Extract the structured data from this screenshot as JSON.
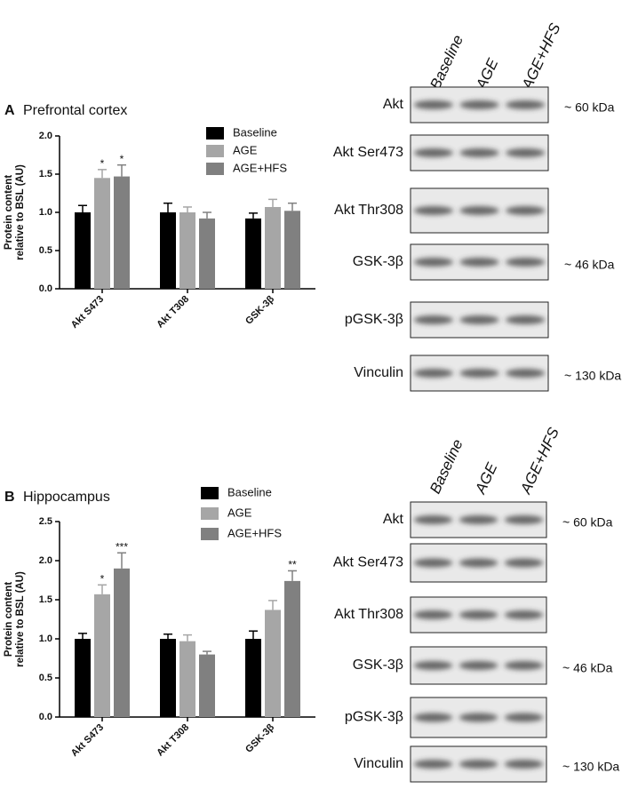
{
  "chart_data": [
    {
      "type": "bar",
      "panel_label": "A",
      "title": "Prefrontal cortex",
      "y_label": [
        "Protein content",
        "relative to BSL (AU)"
      ],
      "categories": [
        "Akt S473",
        "Akt T308",
        "GSK-3β"
      ],
      "ylim": [
        0,
        2
      ],
      "yticks": [
        {
          "value": 0,
          "label": "0.0"
        },
        {
          "value": 0.5,
          "label": "0.5"
        },
        {
          "value": 1,
          "label": "1.0"
        },
        {
          "value": 1.5,
          "label": "1.5"
        },
        {
          "value": 2,
          "label": "2.0"
        }
      ],
      "series": [
        {
          "name": "Baseline",
          "color": "#000000",
          "values": [
            1.0,
            1.0,
            0.92
          ],
          "errors": [
            0.09,
            0.12,
            0.07
          ],
          "significance": [
            null,
            null,
            null
          ]
        },
        {
          "name": "AGE",
          "color": "#a6a6a6",
          "values": [
            1.45,
            1.0,
            1.07
          ],
          "errors": [
            0.11,
            0.07,
            0.1
          ],
          "significance": [
            "*",
            null,
            null
          ]
        },
        {
          "name": "AGE+HFS",
          "color": "#808080",
          "values": [
            1.47,
            0.92,
            1.02
          ],
          "errors": [
            0.15,
            0.08,
            0.1
          ],
          "significance": [
            "*",
            null,
            null
          ]
        }
      ]
    },
    {
      "type": "bar",
      "panel_label": "B",
      "title": "Hippocampus",
      "y_label": [
        "Protein content",
        "relative to BSL (AU)"
      ],
      "categories": [
        "Akt S473",
        "Akt T308",
        "GSK-3β"
      ],
      "ylim": [
        0,
        2.5
      ],
      "yticks": [
        {
          "value": 0,
          "label": "0.0"
        },
        {
          "value": 0.5,
          "label": "0.5"
        },
        {
          "value": 1,
          "label": "1.0"
        },
        {
          "value": 1.5,
          "label": "1.5"
        },
        {
          "value": 2,
          "label": "2.0"
        },
        {
          "value": 2.5,
          "label": "2.5"
        }
      ],
      "series": [
        {
          "name": "Baseline",
          "color": "#000000",
          "values": [
            1.0,
            1.0,
            1.0
          ],
          "errors": [
            0.07,
            0.06,
            0.1
          ],
          "significance": [
            null,
            null,
            null
          ]
        },
        {
          "name": "AGE",
          "color": "#a6a6a6",
          "values": [
            1.57,
            0.97,
            1.37
          ],
          "errors": [
            0.12,
            0.08,
            0.12
          ],
          "significance": [
            "*",
            null,
            null
          ]
        },
        {
          "name": "AGE+HFS",
          "color": "#808080",
          "values": [
            1.9,
            0.8,
            1.74
          ],
          "errors": [
            0.2,
            0.04,
            0.13
          ],
          "significance": [
            "***",
            null,
            "**"
          ]
        }
      ]
    }
  ],
  "blots": [
    {
      "lanes": [
        "Baseline",
        "AGE",
        "AGE+HFS"
      ],
      "rows": [
        {
          "label": "Akt",
          "size": "~ 60 kDa"
        },
        {
          "label": "Akt Ser473"
        },
        {
          "label": "Akt Thr308"
        },
        {
          "label": "GSK-3β",
          "size": "~ 46 kDa"
        },
        {
          "label": "pGSK-3β"
        },
        {
          "label": "Vinculin",
          "size": "~ 130 kDa"
        }
      ]
    },
    {
      "lanes": [
        "Baseline",
        "AGE",
        "AGE+HFS"
      ],
      "rows": [
        {
          "label": "Akt",
          "size": "~ 60 kDa"
        },
        {
          "label": "Akt Ser473"
        },
        {
          "label": "Akt Thr308"
        },
        {
          "label": "GSK-3β",
          "size": "~ 46 kDa"
        },
        {
          "label": "pGSK-3β"
        },
        {
          "label": "Vinculin",
          "size": "~ 130 kDa"
        }
      ]
    }
  ]
}
